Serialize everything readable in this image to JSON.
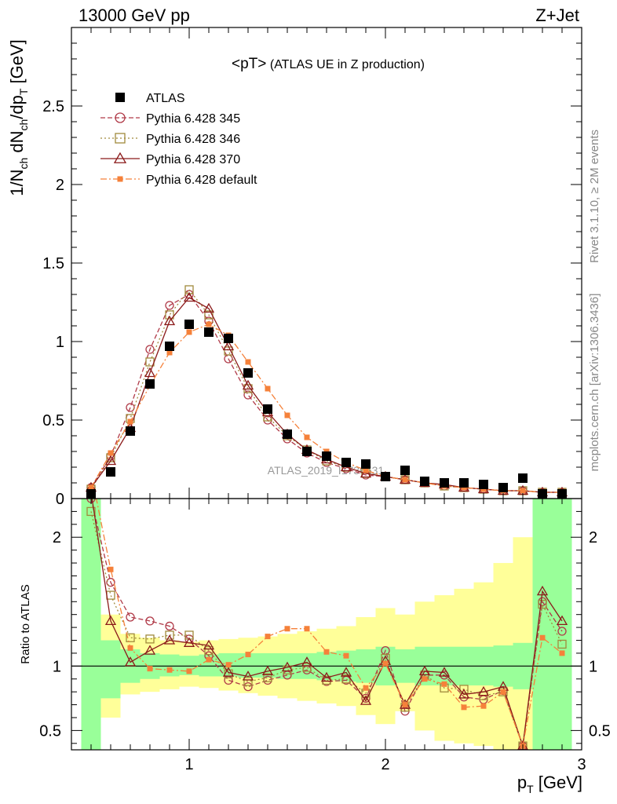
{
  "header": {
    "left": "13000 GeV pp",
    "right": "Z+Jet"
  },
  "side_labels": {
    "rivet": "Rivet 3.1.10, ≥ 2M events",
    "mcplots": "mcplots.cern.ch [arXiv:1306.3436]"
  },
  "watermark": "ATLAS_2019_I1736531",
  "colors": {
    "data": "#000000",
    "p345": "#b03a48",
    "p346": "#a08a3c",
    "p370": "#8b1a1a",
    "pdefault": "#f5813a",
    "band_inner": "#99ff99",
    "band_outer": "#ffff99"
  },
  "chart_data": [
    {
      "type": "scatter",
      "title": "<pT> (ATLAS UE in Z production)",
      "title_main": "<pT>",
      "title_sub": "(ATLAS UE in Z production)",
      "ylabel_parts": {
        "a": "1/N",
        "a_sub": "ch",
        "b": " dN",
        "b_sub": "ch",
        "c": "/dp",
        "c_sub": "T",
        "d": " [GeV]"
      },
      "xlim": [
        0.4,
        3.0
      ],
      "ylim": [
        0,
        3.0
      ],
      "yticks": [
        "0",
        "0.5",
        "1",
        "1.5",
        "2",
        "2.5"
      ],
      "legend_position": "top-left",
      "x": [
        0.5,
        0.6,
        0.7,
        0.8,
        0.9,
        1.0,
        1.1,
        1.2,
        1.3,
        1.4,
        1.5,
        1.6,
        1.7,
        1.8,
        1.9,
        2.0,
        2.1,
        2.2,
        2.3,
        2.4,
        2.5,
        2.6,
        2.7,
        2.8,
        2.9
      ],
      "series": [
        {
          "name": "ATLAS",
          "key": "data",
          "marker": "filled-square",
          "values": [
            0.03,
            0.17,
            0.43,
            0.73,
            0.97,
            1.11,
            1.06,
            1.02,
            0.8,
            0.57,
            0.41,
            0.3,
            0.27,
            0.23,
            0.22,
            0.14,
            0.18,
            0.11,
            0.1,
            0.1,
            0.09,
            0.07,
            0.13,
            0.03,
            0.03
          ]
        },
        {
          "name": "Pythia 6.428 345",
          "key": "p345",
          "marker": "open-circle",
          "dash": "6,3",
          "values": [
            0.07,
            0.27,
            0.58,
            0.95,
            1.23,
            1.3,
            1.13,
            0.89,
            0.66,
            0.5,
            0.38,
            0.29,
            0.23,
            0.19,
            0.15,
            0.14,
            0.12,
            0.1,
            0.08,
            0.07,
            0.06,
            0.05,
            0.05,
            0.04,
            0.04
          ]
        },
        {
          "name": "Pythia 6.428 346",
          "key": "p346",
          "marker": "open-square",
          "dash": "2,3",
          "values": [
            0.06,
            0.26,
            0.51,
            0.87,
            1.17,
            1.33,
            1.17,
            0.94,
            0.7,
            0.52,
            0.4,
            0.31,
            0.24,
            0.2,
            0.16,
            0.14,
            0.12,
            0.1,
            0.08,
            0.07,
            0.06,
            0.05,
            0.05,
            0.04,
            0.04
          ]
        },
        {
          "name": "Pythia 6.428 370",
          "key": "p370",
          "marker": "open-triangle",
          "dash": "",
          "values": [
            0.07,
            0.24,
            0.45,
            0.8,
            1.13,
            1.28,
            1.21,
            0.97,
            0.72,
            0.55,
            0.41,
            0.31,
            0.25,
            0.2,
            0.16,
            0.14,
            0.12,
            0.1,
            0.09,
            0.07,
            0.06,
            0.05,
            0.05,
            0.04,
            0.04
          ]
        },
        {
          "name": "Pythia 6.428 default",
          "key": "pdefault",
          "marker": "small-filled-square",
          "dash": "8,3,2,3",
          "values": [
            0.07,
            0.29,
            0.49,
            0.72,
            0.93,
            1.06,
            1.11,
            1.04,
            0.87,
            0.7,
            0.53,
            0.39,
            0.3,
            0.23,
            0.18,
            0.14,
            0.12,
            0.1,
            0.08,
            0.07,
            0.06,
            0.05,
            0.05,
            0.04,
            0.04
          ]
        }
      ]
    },
    {
      "type": "line",
      "ylabel": "Ratio to ATLAS",
      "xlabel": "p",
      "xlabel_sub": "T",
      "xlabel_unit": " [GeV]",
      "xlim": [
        0.4,
        3.0
      ],
      "ylim": [
        0.35,
        2.3
      ],
      "xticks": [
        "1",
        "2",
        "3"
      ],
      "yticks": [
        "0.5",
        "1",
        "2"
      ],
      "reference_line": 1,
      "band_edges": [
        0.45,
        0.55,
        0.65,
        0.75,
        0.85,
        0.95,
        1.05,
        1.15,
        1.25,
        1.35,
        1.45,
        1.55,
        1.65,
        1.75,
        1.85,
        1.95,
        2.05,
        2.15,
        2.25,
        2.35,
        2.45,
        2.55,
        2.65,
        2.75,
        2.85,
        2.95
      ],
      "band_inner": [
        [
          0.35,
          2.3
        ],
        [
          0.75,
          1.2
        ],
        [
          0.87,
          1.13
        ],
        [
          0.9,
          1.1
        ],
        [
          0.92,
          1.09
        ],
        [
          0.93,
          1.08
        ],
        [
          0.92,
          1.09
        ],
        [
          0.92,
          1.1
        ],
        [
          0.91,
          1.1
        ],
        [
          0.91,
          1.1
        ],
        [
          0.9,
          1.1
        ],
        [
          0.9,
          1.1
        ],
        [
          0.89,
          1.11
        ],
        [
          0.88,
          1.12
        ],
        [
          0.87,
          1.13
        ],
        [
          0.85,
          1.15
        ],
        [
          0.87,
          1.13
        ],
        [
          0.85,
          1.15
        ],
        [
          0.85,
          1.15
        ],
        [
          0.85,
          1.15
        ],
        [
          0.85,
          1.15
        ],
        [
          0.84,
          1.16
        ],
        [
          0.82,
          1.18
        ],
        [
          0.35,
          2.3
        ],
        [
          0.35,
          2.3
        ]
      ],
      "band_outer": [
        [
          0.35,
          2.3
        ],
        [
          0.6,
          1.4
        ],
        [
          0.78,
          1.25
        ],
        [
          0.8,
          1.22
        ],
        [
          0.82,
          1.2
        ],
        [
          0.84,
          1.19
        ],
        [
          0.83,
          1.2
        ],
        [
          0.81,
          1.21
        ],
        [
          0.79,
          1.22
        ],
        [
          0.77,
          1.23
        ],
        [
          0.75,
          1.25
        ],
        [
          0.73,
          1.27
        ],
        [
          0.71,
          1.29
        ],
        [
          0.69,
          1.31
        ],
        [
          0.62,
          1.38
        ],
        [
          0.55,
          1.45
        ],
        [
          0.65,
          1.4
        ],
        [
          0.5,
          1.5
        ],
        [
          0.42,
          1.55
        ],
        [
          0.4,
          1.6
        ],
        [
          0.38,
          1.65
        ],
        [
          0.35,
          1.8
        ],
        [
          0.35,
          2.0
        ],
        [
          0.35,
          2.3
        ],
        [
          0.35,
          2.3
        ]
      ],
      "series": [
        {
          "name": "Pythia 6.428 345",
          "key": "p345",
          "marker": "open-circle",
          "dash": "6,3",
          "values": [
            2.3,
            1.65,
            1.38,
            1.35,
            1.31,
            1.21,
            1.08,
            0.89,
            0.84,
            0.89,
            0.93,
            0.97,
            0.88,
            0.89,
            0.75,
            1.12,
            0.65,
            0.93,
            0.93,
            0.76,
            0.74,
            0.81,
            0.38,
            1.5,
            1.27
          ]
        },
        {
          "name": "Pythia 6.428 346",
          "key": "p346",
          "marker": "open-square",
          "dash": "2,3",
          "values": [
            2.2,
            1.55,
            1.22,
            1.21,
            1.24,
            1.24,
            1.12,
            0.94,
            0.88,
            0.91,
            0.97,
            0.99,
            0.89,
            0.9,
            0.79,
            1.06,
            0.68,
            0.93,
            0.83,
            0.82,
            0.77,
            0.8,
            0.38,
            1.48,
            1.17
          ]
        },
        {
          "name": "Pythia 6.428 370",
          "key": "p370",
          "marker": "open-triangle",
          "dash": "",
          "values": [
            2.35,
            1.35,
            1.03,
            1.12,
            1.2,
            1.18,
            1.16,
            0.95,
            0.92,
            0.96,
            0.99,
            1.03,
            0.91,
            0.95,
            0.73,
            1.04,
            0.7,
            0.96,
            0.95,
            0.78,
            0.8,
            0.84,
            0.38,
            1.58,
            1.35
          ]
        },
        {
          "name": "Pythia 6.428 default",
          "key": "pdefault",
          "marker": "small-filled-square",
          "dash": "8,3,2,3",
          "values": [
            2.5,
            1.75,
            1.14,
            0.98,
            0.97,
            0.96,
            1.05,
            1.01,
            1.09,
            1.23,
            1.29,
            1.29,
            1.11,
            1.08,
            0.83,
            1.02,
            0.7,
            0.9,
            0.86,
            0.68,
            0.69,
            0.8,
            0.38,
            1.22,
            1.1
          ]
        }
      ]
    }
  ]
}
